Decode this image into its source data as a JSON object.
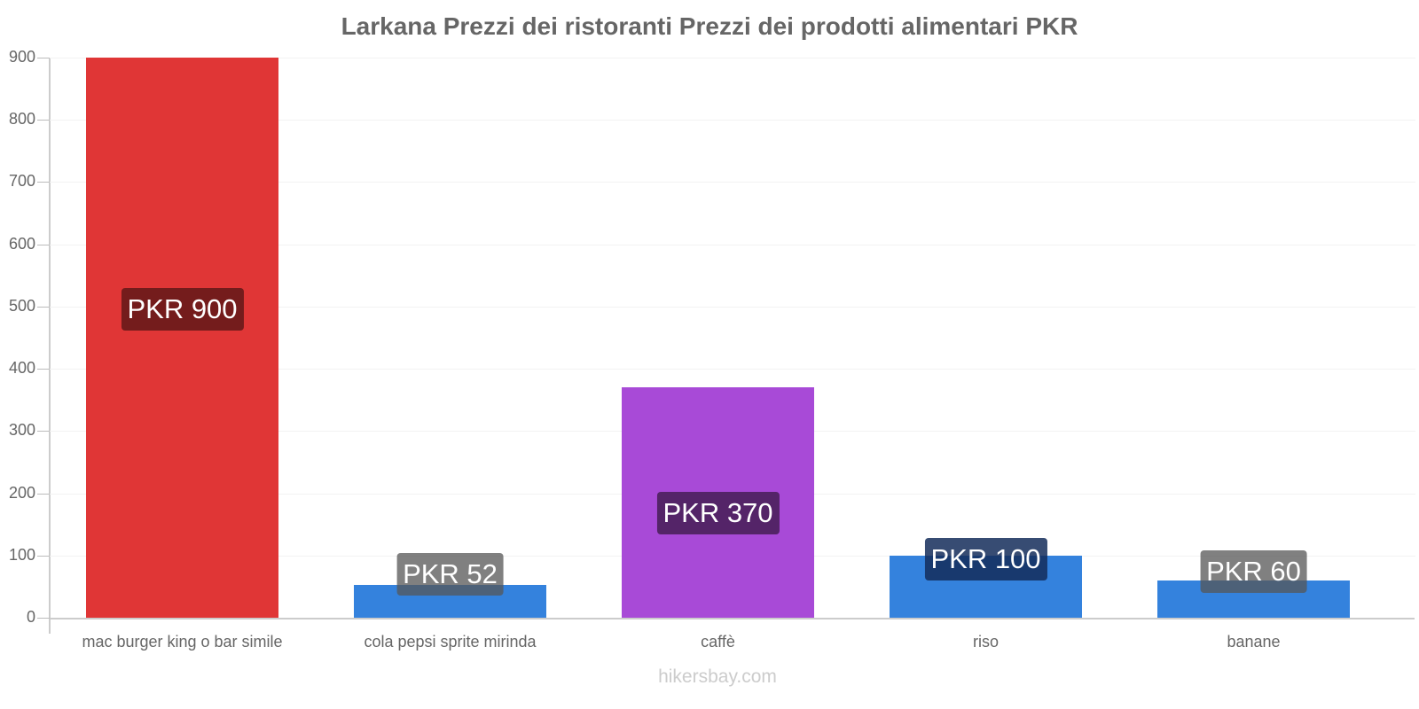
{
  "title": "Larkana Prezzi dei ristoranti Prezzi dei prodotti alimentari PKR",
  "footer": "hikersbay.com",
  "chart_data": {
    "type": "bar",
    "title": "Larkana Prezzi dei ristoranti Prezzi dei prodotti alimentari PKR",
    "xlabel": "",
    "ylabel": "",
    "ylim": [
      0,
      900
    ],
    "yticks": [
      0,
      100,
      200,
      300,
      400,
      500,
      600,
      700,
      800,
      900
    ],
    "grid": true,
    "legend": "none",
    "categories": [
      "mac burger king o bar simile",
      "cola pepsi sprite mirinda",
      "caffè",
      "riso",
      "banane"
    ],
    "values": [
      900,
      52,
      370,
      100,
      60
    ],
    "value_labels": [
      "PKR 900",
      "PKR 52",
      "PKR 370",
      "PKR 100",
      "PKR 60"
    ],
    "bar_colors": [
      "#e03636",
      "#3482dd",
      "#a84ad7",
      "#3482dd",
      "#3482dd"
    ],
    "label_bg_colors": [
      "#741c1c",
      "rgba(85,85,85,0.75)",
      "#542468",
      "rgba(20,45,90,0.85)",
      "rgba(85,85,85,0.75)"
    ]
  }
}
